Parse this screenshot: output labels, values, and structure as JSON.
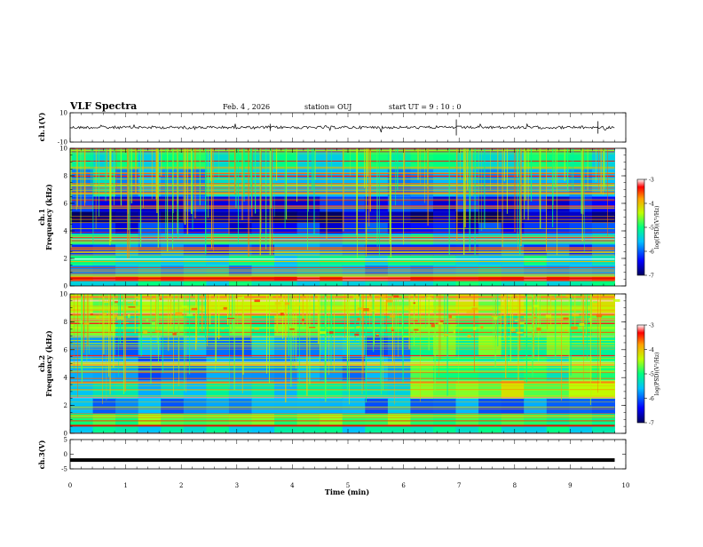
{
  "header": {
    "title": "VLF Spectra",
    "date": "Feb. 4 , 2026",
    "station": "station= OUJ",
    "start": "start UT =  9 : 10 : 0"
  },
  "chart_data": [
    {
      "type": "line",
      "panel": "ch1-waveform",
      "ylabel": "ch.1(V)",
      "ylim": [
        -10,
        10
      ],
      "yticks": [
        "10",
        "-10"
      ],
      "xlim": [
        0,
        10
      ],
      "approx_level": 0
    },
    {
      "type": "heatmap",
      "panel": "ch1-spectrogram",
      "ylabel": "ch.1\nFrequency  (kHz)",
      "yticks": [
        "0",
        "2",
        "4",
        "6",
        "8",
        "10"
      ],
      "ylim": [
        0,
        10
      ],
      "xlim": [
        0,
        10
      ],
      "data_end_min": 9.8,
      "colorbar": {
        "label": "log(PSD)(V²/Hz)",
        "range": [
          -7,
          -3
        ],
        "ticks": [
          "-3",
          "-4",
          "-5",
          "-6",
          "-7"
        ]
      },
      "bands": [
        {
          "f": [
            0.0,
            0.4
          ],
          "level": -5.2
        },
        {
          "f": [
            0.4,
            0.7
          ],
          "level": -3.4
        },
        {
          "f": [
            0.7,
            1.5
          ],
          "level": -5.6
        },
        {
          "f": [
            1.5,
            2.2
          ],
          "level": -5.3
        },
        {
          "f": [
            2.2,
            3.0
          ],
          "level": -6.0
        },
        {
          "f": [
            3.0,
            3.8
          ],
          "level": -5.4
        },
        {
          "f": [
            3.8,
            4.6
          ],
          "level": -6.3
        },
        {
          "f": [
            4.6,
            5.4
          ],
          "level": -6.8
        },
        {
          "f": [
            5.4,
            6.5
          ],
          "level": -6.3
        },
        {
          "f": [
            6.5,
            8.5
          ],
          "level": -5.6
        },
        {
          "f": [
            8.5,
            10.0
          ],
          "level": -5.2
        }
      ]
    },
    {
      "type": "heatmap",
      "panel": "ch2-spectrogram",
      "ylabel": "ch.2\nFrequency  (kHz)",
      "yticks": [
        "0",
        "2",
        "4",
        "6",
        "8",
        "10"
      ],
      "ylim": [
        0,
        10
      ],
      "xlim": [
        0,
        10
      ],
      "data_end_min": 9.8,
      "colorbar": {
        "label": "log(PSD)(V²/Hz)",
        "range": [
          -7,
          -3
        ],
        "ticks": [
          "-3",
          "-4",
          "-5",
          "-6",
          "-7"
        ]
      },
      "bands": [
        {
          "f": [
            0.0,
            0.6
          ],
          "level": -5.3
        },
        {
          "f": [
            0.6,
            1.4
          ],
          "level": -4.8
        },
        {
          "f": [
            1.4,
            2.5
          ],
          "level": -5.8
        },
        {
          "f": [
            2.5,
            3.8
          ],
          "level": -5.4
        },
        {
          "f": [
            3.8,
            5.5
          ],
          "level": -5.9
        },
        {
          "f": [
            5.5,
            7.0
          ],
          "level": -5.8
        },
        {
          "f": [
            7.0,
            8.5
          ],
          "level": -4.9
        },
        {
          "f": [
            8.5,
            10.0
          ],
          "level": -4.5
        }
      ]
    },
    {
      "type": "line",
      "panel": "ch3-waveform",
      "ylabel": "ch.3(V)",
      "ylim": [
        -5,
        5
      ],
      "yticks": [
        "5",
        "0",
        "-5"
      ],
      "xlim": [
        0,
        10
      ],
      "xticks": [
        "0",
        "1",
        "2",
        "3",
        "4",
        "5",
        "6",
        "7",
        "8",
        "9",
        "10"
      ],
      "xlabel": "Time  (min)",
      "approx_level": -2
    }
  ]
}
